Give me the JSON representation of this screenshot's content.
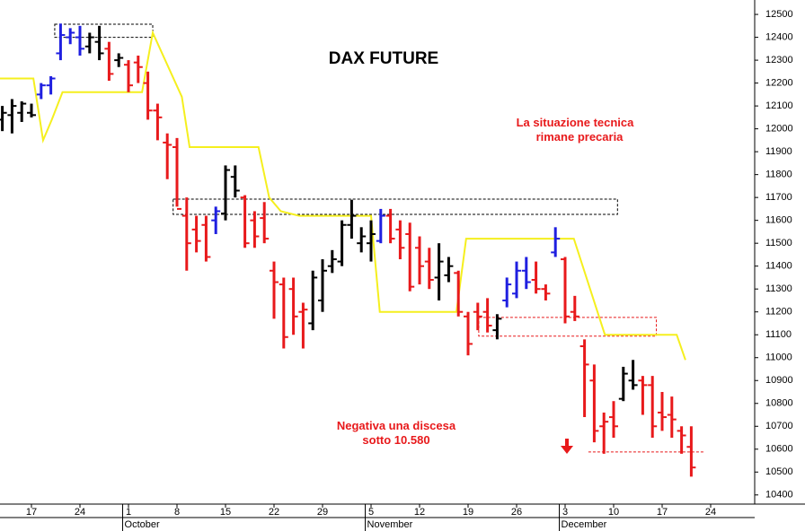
{
  "chart_data": {
    "type": "ohlc",
    "title": "DAX FUTURE",
    "annotations": [
      {
        "lines": [
          "La situazione tecnica",
          "rimane precaria"
        ]
      },
      {
        "lines": [
          "Negativa una discesa",
          "sotto 10.580"
        ]
      }
    ],
    "categories": [
      null,
      null,
      null,
      "17",
      null,
      null,
      null,
      null,
      "24",
      null,
      null,
      null,
      null,
      "1",
      null,
      null,
      null,
      null,
      "8",
      null,
      null,
      null,
      null,
      "15",
      null,
      null,
      null,
      null,
      "22",
      null,
      null,
      null,
      null,
      "29",
      null,
      null,
      null,
      null,
      "5",
      null,
      null,
      null,
      null,
      "12",
      null,
      null,
      null,
      null,
      "19",
      null,
      null,
      null,
      null,
      "26",
      null,
      null,
      null,
      null,
      "3",
      null,
      null,
      null,
      null,
      "10",
      null,
      null,
      null,
      null,
      "17",
      null,
      null,
      null,
      null,
      "24"
    ],
    "month_labels": [
      "October",
      "November",
      "December"
    ],
    "series": [
      {
        "open": [
          12040,
          12060,
          12070,
          12070,
          12150,
          12190,
          12330,
          12400,
          12400,
          12360,
          12380,
          12350,
          12300,
          12280,
          12290,
          12200,
          12080,
          11940,
          11920,
          11620,
          11560,
          11580,
          11600,
          11630,
          11790,
          11700,
          11600,
          11610,
          11380,
          11320,
          11300,
          11200,
          11150,
          11250,
          11400,
          11420,
          11580,
          11500,
          11500,
          11510,
          11620,
          11560,
          11540,
          11480,
          11420,
          11350,
          11360,
          11370,
          11180,
          11200,
          11200,
          11120,
          11250,
          11280,
          11380,
          11340,
          11300,
          11460,
          11430,
          11200,
          11050,
          10900,
          10700,
          10740,
          10820,
          10900,
          10900,
          10880,
          10760,
          10750,
          10680,
          10610,
          null,
          null
        ],
        "high": [
          12100,
          12130,
          12120,
          12110,
          12200,
          12230,
          12460,
          12440,
          12450,
          12420,
          12450,
          12380,
          12330,
          12300,
          12320,
          12250,
          12110,
          11980,
          11960,
          11700,
          11620,
          11620,
          11660,
          11840,
          11840,
          11710,
          11640,
          11680,
          11420,
          11350,
          11350,
          11240,
          11380,
          11430,
          11470,
          11600,
          11690,
          11570,
          11600,
          11650,
          11650,
          11600,
          11590,
          11530,
          11480,
          11500,
          11440,
          11380,
          11200,
          11240,
          11260,
          11190,
          11350,
          11420,
          11440,
          11420,
          11320,
          11570,
          11440,
          11270,
          11080,
          10970,
          10760,
          10810,
          10960,
          10990,
          10920,
          10920,
          10850,
          10830,
          10700,
          10700,
          null,
          null
        ],
        "low": [
          11990,
          11980,
          12030,
          12050,
          12130,
          12150,
          12300,
          12370,
          12320,
          12330,
          12300,
          12210,
          12270,
          12160,
          12200,
          12040,
          11950,
          11780,
          11660,
          11380,
          11460,
          11420,
          11540,
          11600,
          11700,
          11480,
          11480,
          11500,
          11170,
          11040,
          11100,
          11040,
          11120,
          11200,
          11370,
          11400,
          11520,
          11460,
          11420,
          11500,
          11500,
          11430,
          11290,
          11320,
          11300,
          11250,
          11330,
          11180,
          11010,
          11120,
          11110,
          11080,
          11220,
          11260,
          11300,
          11280,
          11250,
          11440,
          11150,
          11160,
          10740,
          10630,
          10580,
          10650,
          10810,
          10860,
          10750,
          10650,
          10680,
          10650,
          10580,
          10480,
          null,
          null
        ],
        "close": [
          12070,
          12100,
          12110,
          12060,
          12190,
          12220,
          12410,
          12420,
          12350,
          12400,
          12330,
          12240,
          12310,
          12190,
          12270,
          12080,
          12050,
          11930,
          11650,
          11500,
          11510,
          11440,
          11640,
          11820,
          11730,
          11500,
          11530,
          11520,
          11330,
          11090,
          11180,
          11210,
          11350,
          11380,
          11430,
          11580,
          11620,
          11530,
          11540,
          11620,
          11520,
          11480,
          11310,
          11400,
          11340,
          11420,
          11400,
          11200,
          11060,
          11180,
          11140,
          11170,
          11320,
          11380,
          11330,
          11300,
          11280,
          11520,
          11180,
          11180,
          10970,
          10680,
          10720,
          10700,
          10930,
          10880,
          10880,
          10700,
          10740,
          10730,
          10660,
          10520,
          null,
          null
        ],
        "bar_colors": [
          "#000000",
          "#000000",
          "#000000",
          "#000000",
          "#1f1fe0",
          "#1f1fe0",
          "#1f1fe0",
          "#1f1fe0",
          "#1f1fe0",
          "#000000",
          "#000000",
          "#e8191b",
          "#000000",
          "#e8191b",
          "#e8191b",
          "#e8191b",
          "#e8191b",
          "#e8191b",
          "#e8191b",
          "#e8191b",
          "#e8191b",
          "#e8191b",
          "#1f1fe0",
          "#000000",
          "#000000",
          "#e8191b",
          "#e8191b",
          "#e8191b",
          "#e8191b",
          "#e8191b",
          "#e8191b",
          "#e8191b",
          "#000000",
          "#000000",
          "#000000",
          "#000000",
          "#000000",
          "#000000",
          "#000000",
          "#1f1fe0",
          "#e8191b",
          "#e8191b",
          "#e8191b",
          "#e8191b",
          "#e8191b",
          "#000000",
          "#000000",
          "#e8191b",
          "#e8191b",
          "#e8191b",
          "#e8191b",
          "#000000",
          "#1f1fe0",
          "#1f1fe0",
          "#1f1fe0",
          "#e8191b",
          "#e8191b",
          "#1f1fe0",
          "#e8191b",
          "#e8191b",
          "#e8191b",
          "#e8191b",
          "#e8191b",
          "#e8191b",
          "#000000",
          "#000000",
          "#e8191b",
          "#e8191b",
          "#e8191b",
          "#e8191b",
          "#e8191b",
          "#e8191b",
          "#000000",
          "#000000"
        ]
      }
    ],
    "stop_line": {
      "color": "#f5ef1e",
      "x": [
        -0.24,
        3.2,
        4.2,
        5.1,
        6.2,
        14.4,
        15.5,
        18.5,
        19.3,
        26.4,
        27.5,
        28.7,
        30.6,
        38.0,
        38.9,
        46.8,
        47.8,
        58.9,
        62.1,
        69.5,
        70.4
      ],
      "values": [
        12220,
        12220,
        11950,
        12040,
        12160,
        12160,
        12420,
        12140,
        11920,
        11920,
        11700,
        11640,
        11620,
        11620,
        11200,
        11200,
        11520,
        11520,
        11100,
        11100,
        10990
      ]
    },
    "zones": [
      {
        "x": [
          5.4,
          15.5
        ],
        "values": [
          12400,
          12457
        ],
        "color": "#000000"
      },
      {
        "x": [
          17.6,
          63.4
        ],
        "values": [
          11626,
          11693
        ],
        "color": "#000000"
      },
      {
        "x": [
          49.1,
          67.4
        ],
        "values": [
          11094,
          11176
        ],
        "color": "#e8191b"
      },
      {
        "x": [
          60.4,
          72.3
        ],
        "values": [
          10588,
          10588
        ],
        "color": "#e8191b"
      }
    ],
    "ylim": [
      10360,
      12563
    ],
    "yticks": [
      10400,
      10500,
      10600,
      10700,
      10800,
      10900,
      11000,
      11100,
      11200,
      11300,
      11400,
      11500,
      11600,
      11700,
      11800,
      11900,
      12000,
      12100,
      12200,
      12300,
      12400,
      12500
    ]
  }
}
